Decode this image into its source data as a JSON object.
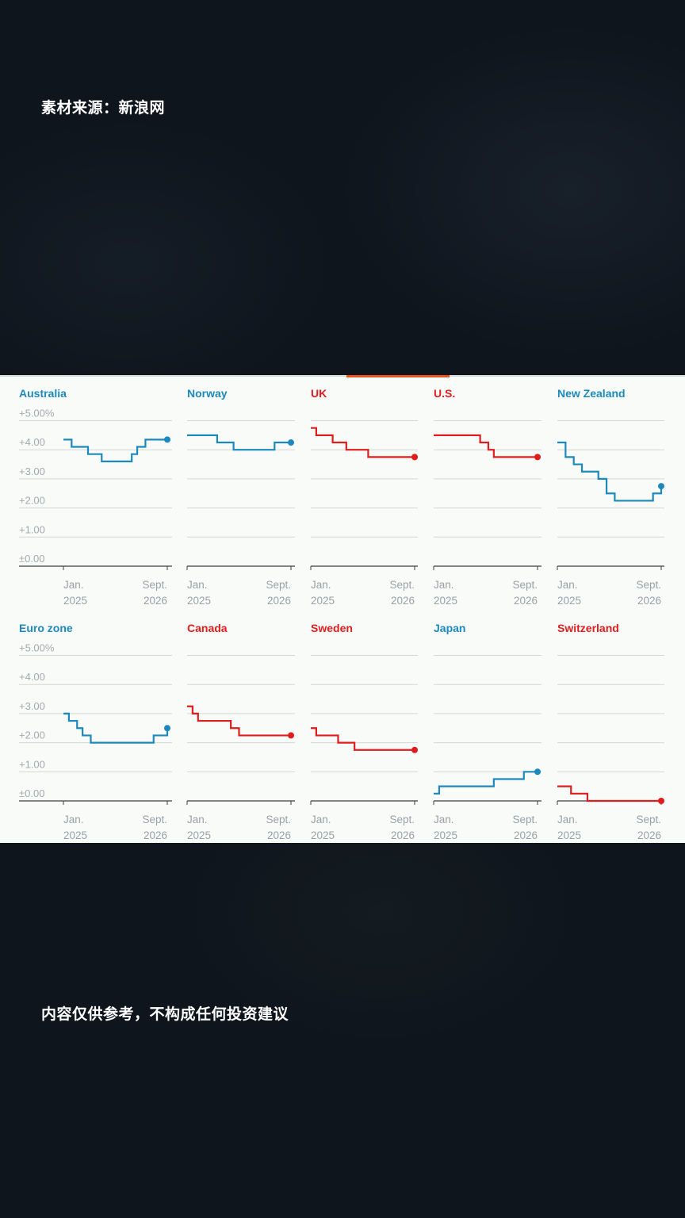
{
  "captions": {
    "source": "素材来源：新浪网",
    "disclaimer": "内容仅供参考，不构成任何投资建议"
  },
  "colors": {
    "blue": "#1c89be",
    "red": "#e01d1d",
    "grid": "#d6d8d6",
    "axis": "#3c3f42",
    "background": "#f9fbf9",
    "page": "#0f151d",
    "accent": "#e8541e"
  },
  "chart_data": [
    {
      "type": "line",
      "title": "Australia",
      "color": "blue",
      "y_ticks": [
        "+5.00%",
        "+4.00",
        "+3.00",
        "+2.00",
        "+1.00",
        "±0.00"
      ],
      "ylim": [
        0,
        5
      ],
      "xlim": [
        -1,
        20
      ],
      "x_ticks": [
        {
          "line1": "Jan.",
          "line2": "2025"
        },
        {
          "line1": "Sept.",
          "line2": "2026"
        }
      ],
      "steps": [
        [
          0,
          4.35
        ],
        [
          1.5,
          4.1
        ],
        [
          4.5,
          3.85
        ],
        [
          7,
          3.6
        ],
        [
          12.5,
          3.85
        ],
        [
          13.5,
          4.1
        ],
        [
          15,
          4.35
        ],
        [
          19,
          4.35
        ]
      ]
    },
    {
      "type": "line",
      "title": "Norway",
      "color": "blue",
      "y_ticks": [],
      "ylim": [
        0,
        5
      ],
      "xlim": [
        -1,
        20
      ],
      "x_ticks": [
        {
          "line1": "Jan.",
          "line2": "2025"
        },
        {
          "line1": "Sept.",
          "line2": "2026"
        }
      ],
      "steps": [
        [
          0,
          4.5
        ],
        [
          5.5,
          4.25
        ],
        [
          8.5,
          4.0
        ],
        [
          16,
          4.25
        ],
        [
          19,
          4.25
        ]
      ]
    },
    {
      "type": "line",
      "title": "UK",
      "color": "red",
      "y_ticks": [],
      "ylim": [
        0,
        5
      ],
      "xlim": [
        -1,
        20
      ],
      "x_ticks": [
        {
          "line1": "Jan.",
          "line2": "2025"
        },
        {
          "line1": "Sept.",
          "line2": "2026"
        }
      ],
      "steps": [
        [
          0,
          4.75
        ],
        [
          1,
          4.5
        ],
        [
          4,
          4.25
        ],
        [
          6.5,
          4.0
        ],
        [
          10.5,
          3.75
        ],
        [
          19,
          3.75
        ]
      ]
    },
    {
      "type": "line",
      "title": "U.S.",
      "color": "red",
      "y_ticks": [],
      "ylim": [
        0,
        5
      ],
      "xlim": [
        -1,
        20
      ],
      "x_ticks": [
        {
          "line1": "Jan.",
          "line2": "2025"
        },
        {
          "line1": "Sept.",
          "line2": "2026"
        }
      ],
      "steps": [
        [
          0,
          4.5
        ],
        [
          8.5,
          4.25
        ],
        [
          10,
          4.0
        ],
        [
          11,
          3.75
        ],
        [
          19,
          3.75
        ]
      ]
    },
    {
      "type": "line",
      "title": "New Zealand",
      "color": "blue",
      "y_ticks": [],
      "ylim": [
        0,
        5
      ],
      "xlim": [
        -1,
        20
      ],
      "x_ticks": [
        {
          "line1": "Jan.",
          "line2": "2025"
        },
        {
          "line1": "Sept.",
          "line2": "2026"
        }
      ],
      "steps": [
        [
          0,
          4.25
        ],
        [
          1.5,
          3.75
        ],
        [
          3,
          3.5
        ],
        [
          4.5,
          3.25
        ],
        [
          7.5,
          3.0
        ],
        [
          9,
          2.5
        ],
        [
          10.5,
          2.25
        ],
        [
          17.5,
          2.5
        ],
        [
          19,
          2.75
        ]
      ]
    },
    {
      "type": "line",
      "title": "Euro zone",
      "color": "blue",
      "y_ticks": [
        "+5.00%",
        "+4.00",
        "+3.00",
        "+2.00",
        "+1.00",
        "±0.00"
      ],
      "ylim": [
        0,
        5
      ],
      "xlim": [
        -1,
        20
      ],
      "x_ticks": [
        {
          "line1": "Jan.",
          "line2": "2025"
        },
        {
          "line1": "Sept.",
          "line2": "2026"
        }
      ],
      "steps": [
        [
          0,
          3.0
        ],
        [
          1,
          2.75
        ],
        [
          2.5,
          2.5
        ],
        [
          3.5,
          2.25
        ],
        [
          5,
          2.0
        ],
        [
          16.5,
          2.25
        ],
        [
          19,
          2.5
        ]
      ]
    },
    {
      "type": "line",
      "title": "Canada",
      "color": "red",
      "y_ticks": [],
      "ylim": [
        0,
        5
      ],
      "xlim": [
        -1,
        20
      ],
      "x_ticks": [
        {
          "line1": "Jan.",
          "line2": "2025"
        },
        {
          "line1": "Sept.",
          "line2": "2026"
        }
      ],
      "steps": [
        [
          0,
          3.25
        ],
        [
          1,
          3.0
        ],
        [
          2,
          2.75
        ],
        [
          8,
          2.5
        ],
        [
          9.5,
          2.25
        ],
        [
          19,
          2.25
        ]
      ]
    },
    {
      "type": "line",
      "title": "Sweden",
      "color": "red",
      "y_ticks": [],
      "ylim": [
        0,
        5
      ],
      "xlim": [
        -1,
        20
      ],
      "x_ticks": [
        {
          "line1": "Jan.",
          "line2": "2025"
        },
        {
          "line1": "Sept.",
          "line2": "2026"
        }
      ],
      "steps": [
        [
          0,
          2.5
        ],
        [
          1,
          2.25
        ],
        [
          5,
          2.0
        ],
        [
          8,
          1.75
        ],
        [
          19,
          1.75
        ]
      ]
    },
    {
      "type": "line",
      "title": "Japan",
      "color": "blue",
      "y_ticks": [],
      "ylim": [
        0,
        5
      ],
      "xlim": [
        -1,
        20
      ],
      "x_ticks": [
        {
          "line1": "Jan.",
          "line2": "2025"
        },
        {
          "line1": "Sept.",
          "line2": "2026"
        }
      ],
      "steps": [
        [
          0,
          0.25
        ],
        [
          1,
          0.5
        ],
        [
          11,
          0.75
        ],
        [
          16.5,
          1.0
        ],
        [
          19,
          1.0
        ]
      ]
    },
    {
      "type": "line",
      "title": "Switzerland",
      "color": "red",
      "y_ticks": [],
      "ylim": [
        0,
        5
      ],
      "xlim": [
        -1,
        20
      ],
      "x_ticks": [
        {
          "line1": "Jan.",
          "line2": "2025"
        },
        {
          "line1": "Sept.",
          "line2": "2026"
        }
      ],
      "steps": [
        [
          0,
          0.5
        ],
        [
          2.5,
          0.25
        ],
        [
          5.5,
          0.0
        ],
        [
          19,
          0.0
        ]
      ]
    }
  ]
}
